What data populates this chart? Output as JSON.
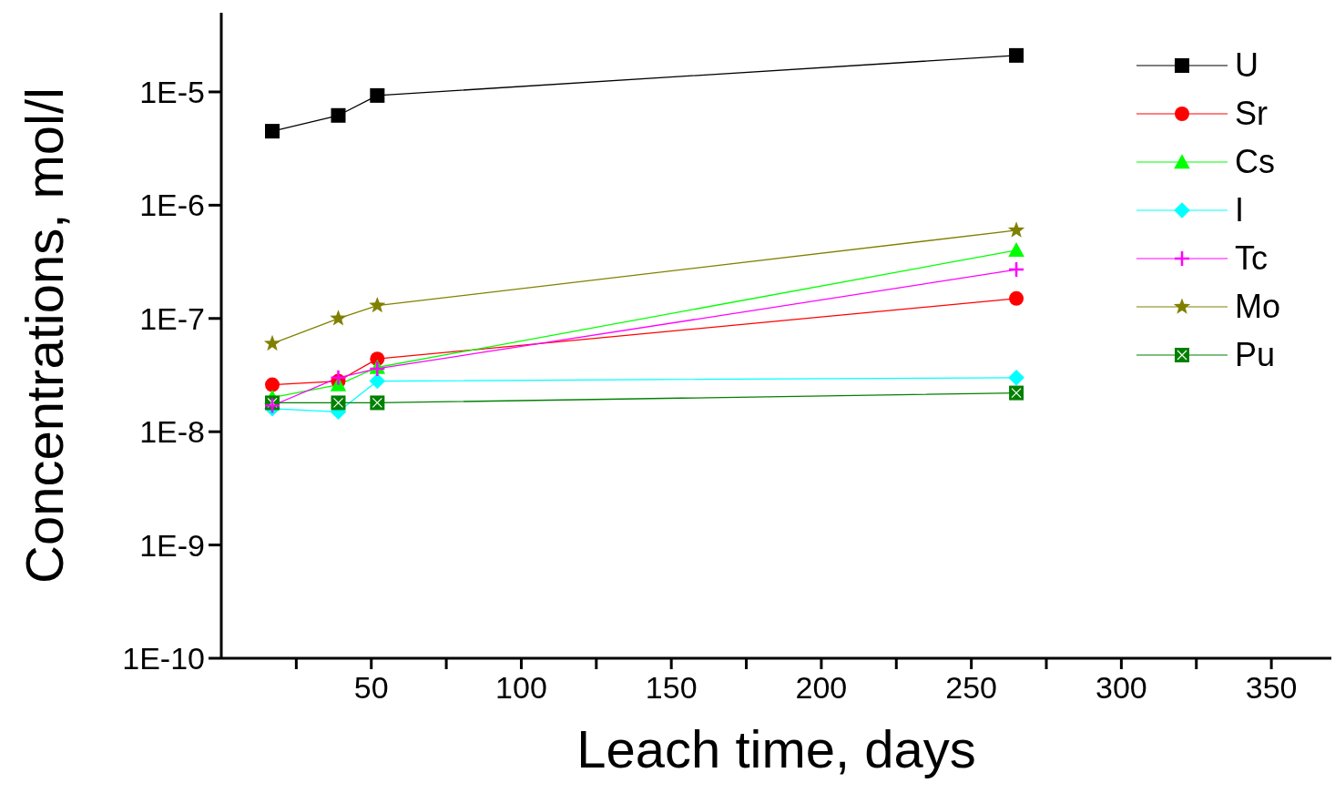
{
  "chart_data": {
    "type": "line",
    "xlabel": "Leach time, days",
    "ylabel": "Concentrations, mol/l",
    "x": [
      17,
      39,
      52,
      265
    ],
    "series": [
      {
        "name": "U",
        "color": "#000000",
        "marker": "square",
        "values": [
          4.5e-06,
          6.2e-06,
          9.3e-06,
          2.1e-05
        ]
      },
      {
        "name": "Sr",
        "color": "#ff0000",
        "marker": "circle",
        "values": [
          2.6e-08,
          2.8e-08,
          4.4e-08,
          1.5e-07
        ]
      },
      {
        "name": "Cs",
        "color": "#00ff00",
        "marker": "triangle",
        "values": [
          2e-08,
          2.6e-08,
          3.7e-08,
          4e-07
        ]
      },
      {
        "name": "I",
        "color": "#00ffff",
        "marker": "diamond",
        "values": [
          1.6e-08,
          1.5e-08,
          2.8e-08,
          3e-08
        ]
      },
      {
        "name": "Tc",
        "color": "#ff00ff",
        "marker": "cross",
        "values": [
          1.7e-08,
          3e-08,
          3.6e-08,
          2.7e-07
        ]
      },
      {
        "name": "Mo",
        "color": "#808000",
        "marker": "star",
        "values": [
          6e-08,
          1e-07,
          1.3e-07,
          6e-07
        ]
      },
      {
        "name": "Pu",
        "color": "#008000",
        "marker": "square",
        "values": [
          1.8e-08,
          1.8e-08,
          1.8e-08,
          2.2e-08
        ]
      }
    ],
    "xlim": [
      0,
      370
    ],
    "xticks": [
      {
        "value": 25,
        "label": null
      },
      50,
      {
        "value": 75,
        "label": null
      },
      100,
      {
        "value": 125,
        "label": null
      },
      150,
      {
        "value": 175,
        "label": null
      },
      200,
      {
        "value": 225,
        "label": null
      },
      250,
      {
        "value": 275,
        "label": null
      },
      300,
      {
        "value": 325,
        "label": null
      },
      350
    ],
    "log": "y",
    "ylim": [
      1e-10,
      5e-05
    ],
    "yticks": [
      {
        "value": 1e-10,
        "label": "1E-10"
      },
      {
        "value": 1e-09,
        "label": "1E-9"
      },
      {
        "value": 1e-08,
        "label": "1E-8"
      },
      {
        "value": 1e-07,
        "label": "1E-7"
      },
      {
        "value": 1e-06,
        "label": "1E-6"
      },
      {
        "value": 1e-05,
        "label": "1E-5"
      }
    ],
    "grid": false,
    "legend": "top right"
  }
}
